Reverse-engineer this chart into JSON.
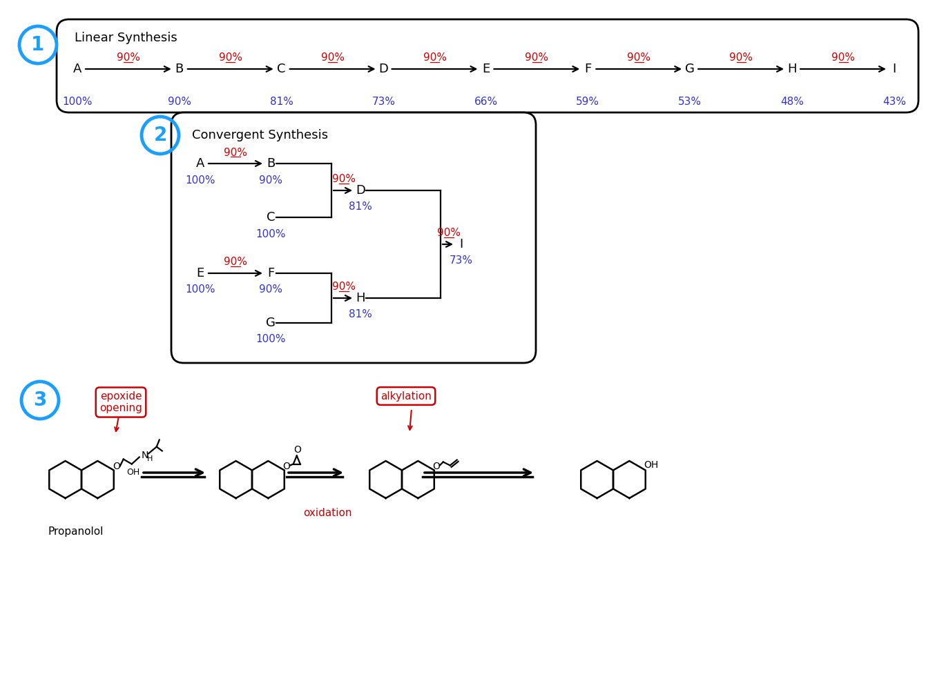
{
  "bg_color": "#ffffff",
  "blue_circle_color": "#1a9fff",
  "red_color": "#cc0000",
  "blue_text_color": "#3333cc",
  "black_color": "#000000",
  "sec1_title": "Linear Synthesis",
  "sec1_nodes": [
    "A",
    "B",
    "C",
    "D",
    "E",
    "F",
    "G",
    "H",
    "I"
  ],
  "sec1_arrow_labels": [
    "90%",
    "90%",
    "90%",
    "90%",
    "90%",
    "90%",
    "90%",
    "90%"
  ],
  "sec1_cumulative": [
    "100%",
    "90%",
    "81%",
    "73%",
    "66%",
    "59%",
    "53%",
    "48%",
    "43%"
  ],
  "sec2_title": "Convergent Synthesis",
  "sec2_nodes": [
    "A",
    "B",
    "C",
    "D",
    "E",
    "F",
    "G",
    "H",
    "I"
  ],
  "sec2_pct_A": "100%",
  "sec2_pct_B": "90%",
  "sec2_pct_C": "100%",
  "sec2_pct_D": "81%",
  "sec2_pct_E": "100%",
  "sec2_pct_F": "90%",
  "sec2_pct_G": "100%",
  "sec2_pct_H": "81%",
  "sec2_pct_I": "73%",
  "sec2_arrow90": "90%",
  "label_epoxide": "epoxide\nopening",
  "label_alkylation": "alkylation",
  "label_oxidation": "oxidation",
  "label_propanolol": "Propanolol"
}
